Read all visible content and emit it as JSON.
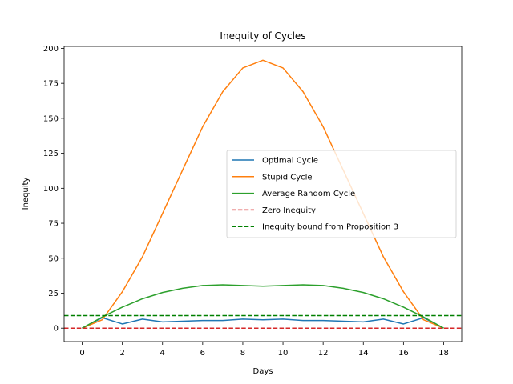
{
  "chart_data": {
    "type": "line",
    "title": "Inequity of Cycles",
    "xlabel": "Days",
    "ylabel": "Inequity",
    "xlim": [
      -0.9,
      18.9
    ],
    "ylim": [
      -9.6,
      201.4
    ],
    "xticks": [
      0,
      2,
      4,
      6,
      8,
      10,
      12,
      14,
      16,
      18
    ],
    "yticks": [
      0,
      25,
      50,
      75,
      100,
      125,
      150,
      175,
      200
    ],
    "grid": false,
    "legend_position": "center-right",
    "x": [
      0,
      1,
      2,
      3,
      4,
      5,
      6,
      7,
      8,
      9,
      10,
      11,
      12,
      13,
      14,
      15,
      16,
      17,
      18
    ],
    "series": [
      {
        "name": "Optimal Cycle",
        "color": "#1f77b4",
        "style": "solid",
        "values": [
          0,
          7.5,
          3,
          6.5,
          4.5,
          5,
          5.5,
          5.5,
          6.5,
          6,
          6.5,
          5.5,
          5.5,
          5,
          4.5,
          6.5,
          3,
          7.5,
          0
        ]
      },
      {
        "name": "Stupid Cycle",
        "color": "#ff7f0e",
        "style": "solid",
        "values": [
          0,
          6,
          26,
          51,
          82,
          113,
          144,
          169,
          186,
          191.5,
          186,
          169,
          144,
          113,
          82,
          51,
          26,
          6,
          0
        ]
      },
      {
        "name": "Average Random Cycle",
        "color": "#2ca02c",
        "style": "solid",
        "values": [
          0,
          8,
          15,
          21,
          25.5,
          28.5,
          30.5,
          31,
          30.5,
          30,
          30.5,
          31,
          30.5,
          28.5,
          25.5,
          21,
          15,
          8,
          0
        ]
      },
      {
        "name": "Zero Inequity",
        "color": "#d62728",
        "style": "dashed",
        "hline": 0
      },
      {
        "name": "Inequity bound from Proposition 3",
        "color": "#008000",
        "style": "dashed",
        "hline": 9
      }
    ]
  }
}
